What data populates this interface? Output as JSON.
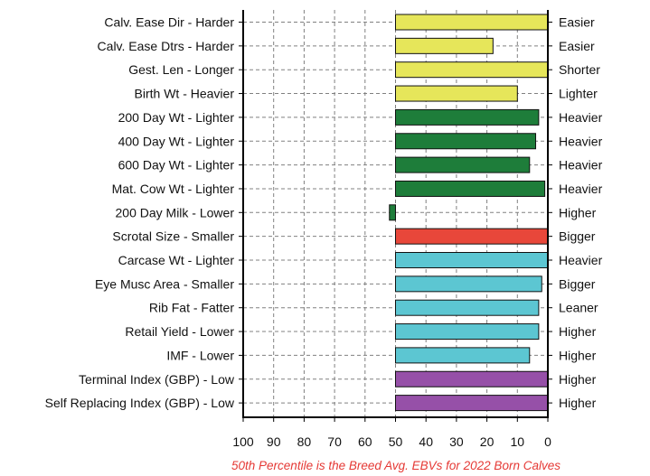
{
  "chart_data": {
    "type": "bar",
    "orientation": "horizontal",
    "x_axis": {
      "min": 100,
      "max": 0,
      "reversed": true,
      "baseline": 50,
      "ticks": [
        100,
        90,
        80,
        70,
        60,
        50,
        40,
        30,
        20,
        10,
        0
      ]
    },
    "grid": true,
    "footnote": "50th Percentile is the Breed Avg. EBVs for 2022 Born Calves",
    "colors": {
      "footnote": "#e53935",
      "axis": "#000000",
      "grid": "#808080"
    },
    "bars": [
      {
        "left_label": "Calv. Ease Dir - Harder",
        "right_label": "Easier",
        "value": 0,
        "color": "#e6e65a"
      },
      {
        "left_label": "Calv. Ease Dtrs - Harder",
        "right_label": "Easier",
        "value": 18,
        "color": "#e6e65a"
      },
      {
        "left_label": "Gest. Len - Longer",
        "right_label": "Shorter",
        "value": 0,
        "color": "#e6e65a"
      },
      {
        "left_label": "Birth Wt - Heavier",
        "right_label": "Lighter",
        "value": 10,
        "color": "#e6e65a"
      },
      {
        "left_label": "200 Day Wt - Lighter",
        "right_label": "Heavier",
        "value": 3,
        "color": "#1e7d3a"
      },
      {
        "left_label": "400 Day Wt - Lighter",
        "right_label": "Heavier",
        "value": 4,
        "color": "#1e7d3a"
      },
      {
        "left_label": "600 Day Wt - Lighter",
        "right_label": "Heavier",
        "value": 6,
        "color": "#1e7d3a"
      },
      {
        "left_label": "Mat. Cow Wt - Lighter",
        "right_label": "Heavier",
        "value": 1,
        "color": "#1e7d3a"
      },
      {
        "left_label": "200 Day Milk - Lower",
        "right_label": "Higher",
        "value": 52,
        "color": "#1e7d3a"
      },
      {
        "left_label": "Scrotal Size - Smaller",
        "right_label": "Bigger",
        "value": 0,
        "color": "#e8473a"
      },
      {
        "left_label": "Carcase Wt - Lighter",
        "right_label": "Heavier",
        "value": 0,
        "color": "#5cc6d2"
      },
      {
        "left_label": "Eye Musc Area - Smaller",
        "right_label": "Bigger",
        "value": 2,
        "color": "#5cc6d2"
      },
      {
        "left_label": "Rib Fat - Fatter",
        "right_label": "Leaner",
        "value": 3,
        "color": "#5cc6d2"
      },
      {
        "left_label": "Retail Yield - Lower",
        "right_label": "Higher",
        "value": 3,
        "color": "#5cc6d2"
      },
      {
        "left_label": "IMF - Lower",
        "right_label": "Higher",
        "value": 6,
        "color": "#5cc6d2"
      },
      {
        "left_label": "Terminal Index (GBP) - Low",
        "right_label": "Higher",
        "value": 0,
        "color": "#9650a8"
      },
      {
        "left_label": "Self Replacing Index (GBP) - Low",
        "right_label": "Higher",
        "value": 0,
        "color": "#9650a8"
      }
    ]
  }
}
